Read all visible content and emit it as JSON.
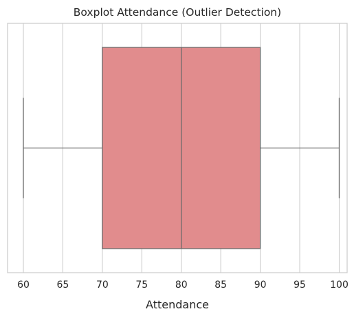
{
  "chart_data": {
    "type": "boxplot",
    "title": "Boxplot Attendance (Outlier Detection)",
    "xlabel": "Attendance",
    "ylabel": "",
    "xlim": [
      58,
      101
    ],
    "xticks": [
      60,
      65,
      70,
      75,
      80,
      85,
      90,
      95,
      100
    ],
    "grid": "vertical",
    "orientation": "horizontal",
    "box": {
      "whisker_low": 60,
      "q1": 70,
      "median": 80,
      "q3": 90,
      "whisker_high": 100,
      "outliers": []
    },
    "colors": {
      "box_fill": "#e18c8d",
      "line": "#6a6a6a",
      "grid": "#cccccc",
      "frame": "#cccccc"
    }
  }
}
